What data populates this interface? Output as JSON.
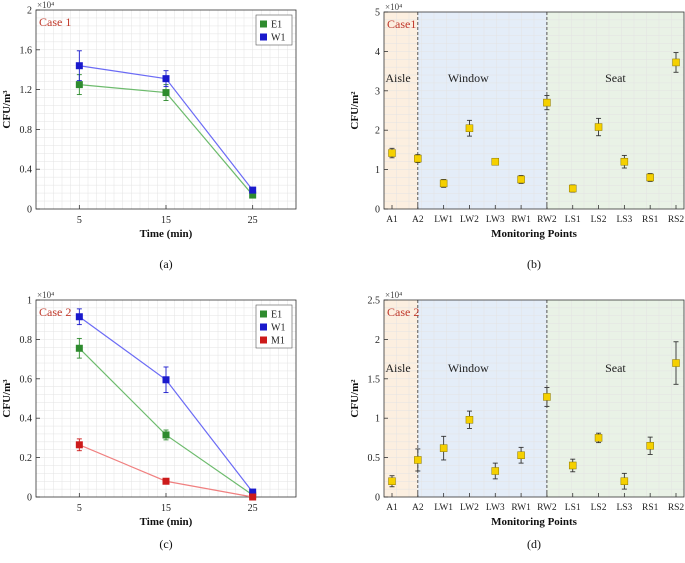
{
  "chart_data": [
    {
      "type": "line",
      "panel_label": "(a)",
      "case_label": "Case 1",
      "exponent_label": "×10⁴",
      "xlabel": "Time (min)",
      "ylabel": "CFU/m³",
      "x": [
        5,
        15,
        25
      ],
      "xlim": [
        0,
        30
      ],
      "ylim": [
        0,
        2
      ],
      "yticks": [
        0,
        0.4,
        0.8,
        1.2,
        1.6,
        2
      ],
      "ytick_labels": [
        "0",
        "0.4",
        "0.8",
        "1.2",
        "1.6",
        "2"
      ],
      "xticks": [
        5,
        15,
        25
      ],
      "legend_position": "top-right",
      "series": [
        {
          "name": "E1",
          "color": "#2e8b2e",
          "line_color": "#6dbb6d",
          "values": [
            1.25,
            1.17,
            0.14
          ],
          "errors": [
            0.1,
            0.08,
            0.03
          ]
        },
        {
          "name": "W1",
          "color": "#1a1acc",
          "line_color": "#6b6bf5",
          "values": [
            1.44,
            1.31,
            0.19
          ],
          "errors": [
            0.15,
            0.08,
            0.02
          ]
        }
      ]
    },
    {
      "type": "scatter",
      "panel_label": "(b)",
      "case_label": "Case1",
      "exponent_label": "×10⁴",
      "xlabel": "Monitoring Points",
      "ylabel": "CFU/m²",
      "categories": [
        "A1",
        "A2",
        "LW1",
        "LW2",
        "LW3",
        "RW1",
        "RW2",
        "LS1",
        "LS2",
        "LS3",
        "RS1",
        "RS2"
      ],
      "ylim": [
        0,
        5
      ],
      "yticks": [
        0,
        1,
        2,
        3,
        4,
        5
      ],
      "ytick_labels": [
        "0",
        "1",
        "2",
        "3",
        "4",
        "5"
      ],
      "regions": [
        {
          "name": "Aisle",
          "color": "#fcefe0",
          "start": 0,
          "end": 1
        },
        {
          "name": "Window",
          "color": "#e4edf8",
          "start": 1,
          "end": 6
        },
        {
          "name": "Seat",
          "color": "#e9f2e6",
          "start": 6,
          "end": 11
        }
      ],
      "marker_color": "#f5d000",
      "values": [
        1.42,
        1.28,
        0.65,
        2.05,
        1.2,
        0.75,
        2.7,
        0.52,
        2.08,
        1.2,
        0.8,
        3.72
      ],
      "errors": [
        0.12,
        0.1,
        0.1,
        0.2,
        0.06,
        0.1,
        0.18,
        0.09,
        0.22,
        0.16,
        0.1,
        0.25
      ]
    },
    {
      "type": "line",
      "panel_label": "(c)",
      "case_label": "Case 2",
      "exponent_label": "×10⁴",
      "xlabel": "Time (min)",
      "ylabel": "CFU/m³",
      "x": [
        5,
        15,
        25
      ],
      "xlim": [
        0,
        30
      ],
      "ylim": [
        0,
        1
      ],
      "yticks": [
        0,
        0.2,
        0.4,
        0.6,
        0.8,
        1
      ],
      "ytick_labels": [
        "0",
        "0.2",
        "0.4",
        "0.6",
        "0.8",
        "1"
      ],
      "xticks": [
        5,
        15,
        25
      ],
      "legend_position": "top-right",
      "series": [
        {
          "name": "E1",
          "color": "#2e8b2e",
          "line_color": "#6dbb6d",
          "values": [
            0.755,
            0.315,
            0.01
          ],
          "errors": [
            0.05,
            0.025,
            0.01
          ]
        },
        {
          "name": "W1",
          "color": "#1a1acc",
          "line_color": "#6b6bf5",
          "values": [
            0.915,
            0.595,
            0.025
          ],
          "errors": [
            0.04,
            0.065,
            0.01
          ]
        },
        {
          "name": "M1",
          "color": "#cc1a1a",
          "line_color": "#f08080",
          "values": [
            0.265,
            0.08,
            0.0
          ],
          "errors": [
            0.03,
            0.01,
            0.005
          ]
        }
      ]
    },
    {
      "type": "scatter",
      "panel_label": "(d)",
      "case_label": "Case 2",
      "exponent_label": "×10⁴",
      "xlabel": "Monitoring Points",
      "ylabel": "CFU/m²",
      "categories": [
        "A1",
        "A2",
        "LW1",
        "LW2",
        "LW3",
        "RW1",
        "RW2",
        "LS1",
        "LS2",
        "LS3",
        "RS1",
        "RS2"
      ],
      "ylim": [
        0,
        2.5
      ],
      "yticks": [
        0,
        0.5,
        1,
        1.5,
        2,
        2.5
      ],
      "ytick_labels": [
        "0",
        "0.5",
        "1",
        "1.5",
        "2",
        "2.5"
      ],
      "regions": [
        {
          "name": "Aisle",
          "color": "#fcefe0",
          "start": 0,
          "end": 1
        },
        {
          "name": "Window",
          "color": "#e4edf8",
          "start": 1,
          "end": 6
        },
        {
          "name": "Seat",
          "color": "#e9f2e6",
          "start": 6,
          "end": 11
        }
      ],
      "marker_color": "#f5d000",
      "values": [
        0.2,
        0.47,
        0.62,
        0.98,
        0.33,
        0.53,
        1.27,
        0.4,
        0.75,
        0.2,
        0.65,
        1.7
      ],
      "errors": [
        0.07,
        0.14,
        0.15,
        0.11,
        0.1,
        0.1,
        0.12,
        0.08,
        0.06,
        0.1,
        0.11,
        0.27
      ]
    }
  ]
}
